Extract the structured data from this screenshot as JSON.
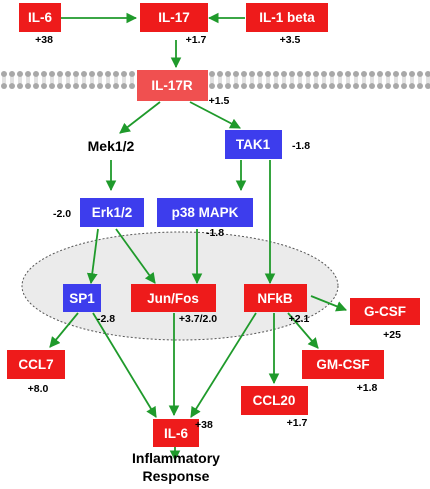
{
  "colors": {
    "up": "#ee1b1b",
    "down": "#3d3ded",
    "receptor": "#f05050",
    "arrow": "#1f9a2b",
    "membrane": "#a8a8a8",
    "nucleus_fill": "#ebebeb"
  },
  "nodes": {
    "il6_top": {
      "label": "IL-6",
      "value": "+38",
      "color": "up"
    },
    "il17": {
      "label": "IL-17",
      "value": "+1.7",
      "color": "up"
    },
    "il1b": {
      "label": "IL-1 beta",
      "value": "+3.5",
      "color": "up"
    },
    "il17r": {
      "label": "IL-17R",
      "value": "+1.5",
      "color": "receptor"
    },
    "mek": {
      "label": "Mek1/2"
    },
    "tak1": {
      "label": "TAK1",
      "value": "-1.8",
      "color": "down"
    },
    "erk": {
      "label": "Erk1/2",
      "value": "-2.0",
      "color": "down"
    },
    "p38": {
      "label": "p38 MAPK",
      "value": "-1.8",
      "color": "down"
    },
    "sp1": {
      "label": "SP1",
      "value": "-2.8",
      "color": "down"
    },
    "junfos": {
      "label": "Jun/Fos",
      "value": "+3.7/2.0",
      "color": "up"
    },
    "nfkb": {
      "label": "NFkB",
      "value": "+2.1",
      "color": "up"
    },
    "gcsf": {
      "label": "G-CSF",
      "value": "+25",
      "color": "up"
    },
    "ccl7": {
      "label": "CCL7",
      "value": "+8.0",
      "color": "up"
    },
    "gmcsf": {
      "label": "GM-CSF",
      "value": "+1.8",
      "color": "up"
    },
    "il6_bottom": {
      "label": "IL-6",
      "value": "+38",
      "color": "up"
    },
    "ccl20": {
      "label": "CCL20",
      "value": "+1.7",
      "color": "up"
    }
  },
  "outcome": {
    "line1": "Inflammatory",
    "line2": "Response"
  }
}
